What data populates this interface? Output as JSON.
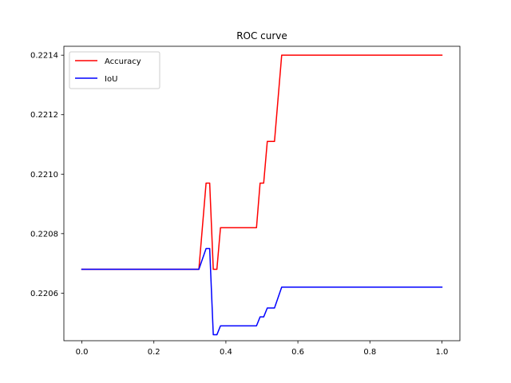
{
  "chart_data": {
    "type": "line",
    "title": "ROC curve",
    "xlabel": "",
    "ylabel": "",
    "xlim": [
      -0.05,
      1.05
    ],
    "ylim": [
      0.22044,
      0.22143
    ],
    "x_ticks": [
      {
        "value": 0.0,
        "label": "0.0"
      },
      {
        "value": 0.2,
        "label": "0.2"
      },
      {
        "value": 0.4,
        "label": "0.4"
      },
      {
        "value": 0.6,
        "label": "0.6"
      },
      {
        "value": 0.8,
        "label": "0.8"
      },
      {
        "value": 1.0,
        "label": "1.0"
      }
    ],
    "y_ticks": [
      {
        "value": 0.2206,
        "label": "0.2206"
      },
      {
        "value": 0.2208,
        "label": "0.2208"
      },
      {
        "value": 0.221,
        "label": "0.2210"
      },
      {
        "value": 0.2212,
        "label": "0.2212"
      },
      {
        "value": 0.2214,
        "label": "0.2214"
      }
    ],
    "grid": false,
    "legend_position": "top-left",
    "series": [
      {
        "name": "Accuracy",
        "color": "#ff0000",
        "points": [
          [
            0.0,
            0.22068
          ],
          [
            0.325,
            0.22068
          ],
          [
            0.345,
            0.22097
          ],
          [
            0.355,
            0.22097
          ],
          [
            0.365,
            0.22068
          ],
          [
            0.375,
            0.22068
          ],
          [
            0.385,
            0.22082
          ],
          [
            0.485,
            0.22082
          ],
          [
            0.495,
            0.22097
          ],
          [
            0.505,
            0.22097
          ],
          [
            0.515,
            0.22111
          ],
          [
            0.535,
            0.22111
          ],
          [
            0.555,
            0.2214
          ],
          [
            1.0,
            0.2214
          ]
        ]
      },
      {
        "name": "IoU",
        "color": "#0000ff",
        "points": [
          [
            0.0,
            0.22068
          ],
          [
            0.325,
            0.22068
          ],
          [
            0.345,
            0.22075
          ],
          [
            0.355,
            0.22075
          ],
          [
            0.365,
            0.22046
          ],
          [
            0.375,
            0.22046
          ],
          [
            0.385,
            0.22049
          ],
          [
            0.485,
            0.22049
          ],
          [
            0.495,
            0.22052
          ],
          [
            0.505,
            0.22052
          ],
          [
            0.515,
            0.22055
          ],
          [
            0.535,
            0.22055
          ],
          [
            0.555,
            0.22062
          ],
          [
            1.0,
            0.22062
          ]
        ]
      }
    ]
  }
}
